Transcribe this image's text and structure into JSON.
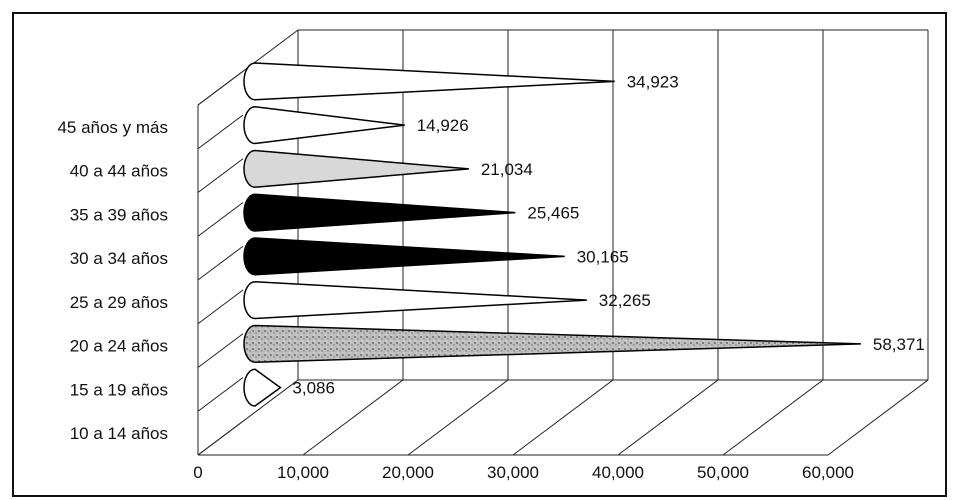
{
  "chart_data": {
    "type": "bar",
    "categories": [
      "10 a 14 años",
      "15 a 19 años",
      "20 a 24 años",
      "25 a 29 años",
      "30 a 34 años",
      "35 a 39 años",
      "40 a 44 años",
      "45 años y más"
    ],
    "values": [
      3086,
      58371,
      32265,
      30165,
      25465,
      21034,
      14926,
      34923
    ],
    "data_labels": [
      "3,086",
      "58,371",
      "32,265",
      "30,165",
      "25,465",
      "21,034",
      "14,926",
      "34,923"
    ],
    "xticks": [
      "0",
      "10,000",
      "20,000",
      "30,000",
      "40,000",
      "50,000",
      "60,000"
    ],
    "xlim": [
      0,
      60000
    ],
    "title": "",
    "xlabel": "",
    "ylabel": "",
    "grid": true,
    "legend": "none",
    "fills": [
      "#ffffff",
      "#c8c8c8",
      "#ffffff",
      "#000000",
      "#000000",
      "#d8d8d8",
      "#ffffff",
      "#ffffff"
    ]
  }
}
